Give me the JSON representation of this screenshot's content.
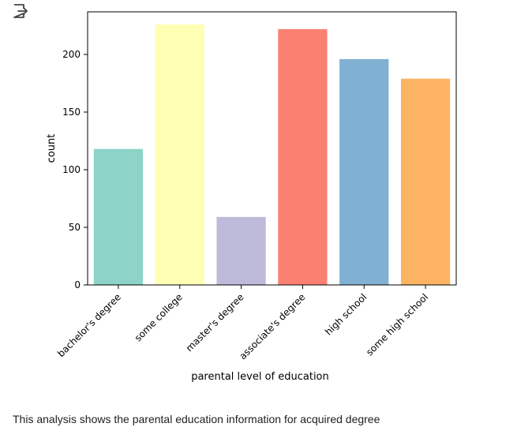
{
  "toolbar": {
    "output_icon": "open-output-icon"
  },
  "chart_data": {
    "type": "bar",
    "categories": [
      "bachelor's degree",
      "some college",
      "master's degree",
      "associate's degree",
      "high school",
      "some high school"
    ],
    "values": [
      118,
      226,
      59,
      222,
      196,
      179
    ],
    "colors": [
      "#8dd3c7",
      "#ffffb3",
      "#bebada",
      "#fb8072",
      "#80b1d3",
      "#fdb462"
    ],
    "xlabel": "parental level of education",
    "ylabel": "count",
    "ylim": [
      0,
      237
    ],
    "yticks": [
      0,
      50,
      100,
      150,
      200
    ],
    "grid": false
  },
  "caption": "This analysis shows the parental education information for acquired degree"
}
